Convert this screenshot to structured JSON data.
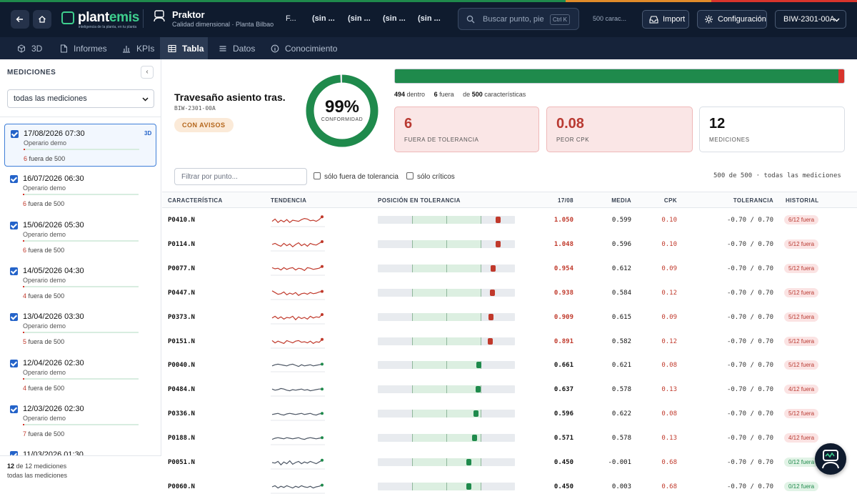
{
  "brand": {
    "name_a": "plant",
    "name_b": "emis",
    "tagline": "inteligencia de la planta, en tu planta"
  },
  "project": {
    "title": "Praktor",
    "subtitle": "Calidad dimensional · Planta Bilbao"
  },
  "breadcrumbs": [
    "F...",
    "(sin ...",
    "(sin ...",
    "(sin ...",
    "(sin ..."
  ],
  "search": {
    "placeholder": "Buscar punto, pie",
    "shortcut": "Ctrl K"
  },
  "top_count": "500 carac...",
  "buttons": {
    "import": "Import",
    "settings": "Configuración"
  },
  "part_select": "BIW-2301-00A",
  "tabs": [
    {
      "label": "3D",
      "icon": "cube-icon"
    },
    {
      "label": "Informes",
      "icon": "document-icon"
    },
    {
      "label": "KPIs",
      "icon": "bar-chart-icon"
    },
    {
      "label": "Tabla",
      "icon": "table-icon",
      "active": true
    },
    {
      "label": "Datos",
      "icon": "list-icon"
    },
    {
      "label": "Conocimiento",
      "icon": "info-icon"
    }
  ],
  "sidebar": {
    "heading": "MEDICIONES",
    "collapse": "‹",
    "filter_value": "todas las mediciones",
    "items": [
      {
        "date": "17/08/2026 07:30",
        "operator": "Operario demo",
        "out_count": "6",
        "out_text": "fuera de 500",
        "badge": "3D",
        "active": true
      },
      {
        "date": "16/07/2026 06:30",
        "operator": "Operario demo",
        "out_count": "6",
        "out_text": "fuera de 500"
      },
      {
        "date": "15/06/2026 05:30",
        "operator": "Operario demo",
        "out_count": "6",
        "out_text": "fuera de 500"
      },
      {
        "date": "14/05/2026 04:30",
        "operator": "Operario demo",
        "out_count": "4",
        "out_text": "fuera de 500"
      },
      {
        "date": "13/04/2026 03:30",
        "operator": "Operario demo",
        "out_count": "5",
        "out_text": "fuera de 500"
      },
      {
        "date": "12/04/2026 02:30",
        "operator": "Operario demo",
        "out_count": "4",
        "out_text": "fuera de 500"
      },
      {
        "date": "12/03/2026 02:30",
        "operator": "Operario demo",
        "out_count": "7",
        "out_text": "fuera de 500"
      },
      {
        "date": "11/03/2026 01:30",
        "operator": "",
        "out_count": "",
        "out_text": ""
      }
    ],
    "footer_count_a": "12",
    "footer_count_b": "de 12 mediciones",
    "footer_filter": "todas las mediciones"
  },
  "part": {
    "title": "Travesaño asiento tras.",
    "code": "BIW-2301-00A",
    "status": "CON AVISOS"
  },
  "gauge": {
    "value": 0.99,
    "label_value": "99%",
    "label": "CONFORMIDAD",
    "color": "#1f8a4c"
  },
  "summary": {
    "inside": "494",
    "inside_label": "dentro",
    "outside": "6",
    "outside_label": "fuera",
    "of_label": "de",
    "total": "500",
    "total_label": "características",
    "ok_fraction": 0.988
  },
  "cards": [
    {
      "value": "6",
      "label": "FUERA DE TOLERANCIA"
    },
    {
      "value": "0.08",
      "label": "PEOR CPK"
    },
    {
      "value": "12",
      "label": "MEDICIONES"
    }
  ],
  "filters": {
    "placeholder": "Filtrar por punto...",
    "only_out": "sólo fuera de tolerancia",
    "only_critical": "sólo críticos",
    "count": "500 de 500 · todas las mediciones"
  },
  "table": {
    "headers": [
      "CARACTERÍSTICA",
      "TENDENCIA",
      "POSICIÓN EN TOLERANCIA",
      "17/08",
      "MEDIA",
      "CPK",
      "TOLERANCIA",
      "HISTORIAL"
    ],
    "tol_min": -0.7,
    "tol_max": 0.7,
    "rows": [
      {
        "name": "P0410.N",
        "value": "1.050",
        "mean": "0.599",
        "cpk": "0.10",
        "tol": "-0.70 / 0.70",
        "hist": "6/12 fuera",
        "out": true,
        "pos": 1.05,
        "trend": [
          0.4,
          0.6,
          0.3,
          0.5,
          0.35,
          0.55,
          0.3,
          0.5,
          0.45,
          0.4,
          0.55,
          0.65,
          0.6,
          0.45,
          0.5,
          0.4,
          0.55,
          0.8
        ]
      },
      {
        "name": "P0114.N",
        "value": "1.048",
        "mean": "0.596",
        "cpk": "0.10",
        "tol": "-0.70 / 0.70",
        "hist": "5/12 fuera",
        "out": true,
        "pos": 1.048,
        "trend": [
          0.5,
          0.6,
          0.45,
          0.35,
          0.6,
          0.4,
          0.55,
          0.3,
          0.5,
          0.65,
          0.4,
          0.55,
          0.35,
          0.6,
          0.5,
          0.45,
          0.6,
          0.75
        ]
      },
      {
        "name": "P0077.N",
        "value": "0.954",
        "mean": "0.612",
        "cpk": "0.09",
        "tol": "-0.70 / 0.70",
        "hist": "5/12 fuera",
        "out": true,
        "pos": 0.954,
        "trend": [
          0.6,
          0.5,
          0.55,
          0.4,
          0.6,
          0.45,
          0.55,
          0.6,
          0.4,
          0.55,
          0.5,
          0.35,
          0.6,
          0.55,
          0.45,
          0.5,
          0.55,
          0.7
        ]
      },
      {
        "name": "P0447.N",
        "value": "0.938",
        "mean": "0.584",
        "cpk": "0.12",
        "tol": "-0.70 / 0.70",
        "hist": "5/12 fuera",
        "out": true,
        "pos": 0.938,
        "trend": [
          0.7,
          0.55,
          0.4,
          0.45,
          0.6,
          0.35,
          0.5,
          0.4,
          0.55,
          0.3,
          0.45,
          0.5,
          0.4,
          0.55,
          0.45,
          0.5,
          0.6,
          0.65
        ]
      },
      {
        "name": "P0373.N",
        "value": "0.909",
        "mean": "0.615",
        "cpk": "0.09",
        "tol": "-0.70 / 0.70",
        "hist": "5/12 fuera",
        "out": true,
        "pos": 0.909,
        "trend": [
          0.45,
          0.6,
          0.4,
          0.55,
          0.35,
          0.5,
          0.45,
          0.6,
          0.3,
          0.55,
          0.4,
          0.5,
          0.35,
          0.6,
          0.45,
          0.55,
          0.5,
          0.75
        ]
      },
      {
        "name": "P0151.N",
        "value": "0.891",
        "mean": "0.582",
        "cpk": "0.12",
        "tol": "-0.70 / 0.70",
        "hist": "5/12 fuera",
        "out": true,
        "pos": 0.891,
        "trend": [
          0.6,
          0.4,
          0.55,
          0.45,
          0.35,
          0.6,
          0.5,
          0.4,
          0.55,
          0.6,
          0.45,
          0.5,
          0.4,
          0.55,
          0.35,
          0.5,
          0.45,
          0.7
        ]
      },
      {
        "name": "P0040.N",
        "value": "0.661",
        "mean": "0.621",
        "cpk": "0.08",
        "tol": "-0.70 / 0.70",
        "hist": "5/12 fuera",
        "out": false,
        "pos": 0.661,
        "trend": [
          0.45,
          0.55,
          0.6,
          0.55,
          0.5,
          0.45,
          0.55,
          0.6,
          0.5,
          0.4,
          0.55,
          0.45,
          0.5,
          0.55,
          0.45,
          0.5,
          0.55,
          0.6
        ]
      },
      {
        "name": "P0484.N",
        "value": "0.637",
        "mean": "0.578",
        "cpk": "0.13",
        "tol": "-0.70 / 0.70",
        "hist": "4/12 fuera",
        "out": false,
        "pos": 0.637,
        "trend": [
          0.55,
          0.45,
          0.5,
          0.6,
          0.55,
          0.45,
          0.4,
          0.5,
          0.45,
          0.5,
          0.55,
          0.45,
          0.5,
          0.4,
          0.45,
          0.5,
          0.55,
          0.55
        ]
      },
      {
        "name": "P0336.N",
        "value": "0.596",
        "mean": "0.622",
        "cpk": "0.08",
        "tol": "-0.70 / 0.70",
        "hist": "5/12 fuera",
        "out": false,
        "pos": 0.596,
        "trend": [
          0.45,
          0.5,
          0.55,
          0.45,
          0.4,
          0.5,
          0.55,
          0.5,
          0.45,
          0.5,
          0.55,
          0.45,
          0.5,
          0.55,
          0.45,
          0.4,
          0.5,
          0.55
        ]
      },
      {
        "name": "P0188.N",
        "value": "0.571",
        "mean": "0.578",
        "cpk": "0.13",
        "tol": "-0.70 / 0.70",
        "hist": "4/12 fuera",
        "out": false,
        "pos": 0.571,
        "trend": [
          0.4,
          0.5,
          0.55,
          0.5,
          0.45,
          0.55,
          0.5,
          0.45,
          0.5,
          0.55,
          0.45,
          0.4,
          0.5,
          0.55,
          0.5,
          0.45,
          0.5,
          0.55
        ]
      },
      {
        "name": "P0051.N",
        "value": "0.450",
        "mean": "-0.001",
        "cpk": "0.68",
        "tol": "-0.70 / 0.70",
        "hist": "0/12 fuera",
        "out": false,
        "pos": 0.45,
        "dark": true,
        "cpk_red": true,
        "trend": [
          0.5,
          0.45,
          0.6,
          0.3,
          0.55,
          0.4,
          0.65,
          0.35,
          0.5,
          0.6,
          0.4,
          0.55,
          0.45,
          0.6,
          0.5,
          0.4,
          0.55,
          0.7
        ]
      },
      {
        "name": "P0060.N",
        "value": "0.450",
        "mean": "0.003",
        "cpk": "0.68",
        "tol": "-0.70 / 0.70",
        "hist": "0/12 fuera",
        "out": false,
        "pos": 0.45,
        "dark": true,
        "cpk_red": true,
        "trend": [
          0.5,
          0.6,
          0.4,
          0.55,
          0.45,
          0.6,
          0.5,
          0.4,
          0.55,
          0.45,
          0.6,
          0.5,
          0.45,
          0.55,
          0.4,
          0.5,
          0.55,
          0.65
        ]
      }
    ]
  },
  "colors": {
    "ok": "#1f8a4c",
    "bad": "#c0392b",
    "marker_bad": "#c0392b",
    "marker_ok": "#1f8a4c",
    "spark_bad": "#c0392b",
    "spark_ok": "#4b5563"
  }
}
